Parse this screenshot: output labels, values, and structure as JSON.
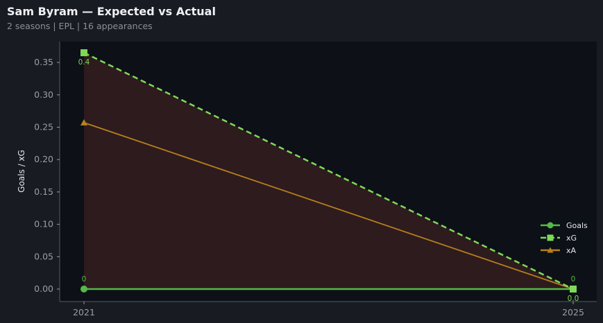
{
  "header": {
    "title": "Sam Byram — Expected vs Actual",
    "subtitle": "2 seasons | EPL | 16 appearances"
  },
  "chart_data": {
    "type": "line",
    "x": [
      2021,
      2025
    ],
    "xticks": [
      "2021",
      "2025"
    ],
    "ylabel": "Goals / xG",
    "ylim": [
      -0.02,
      0.38
    ],
    "yticks": [
      "0.00",
      "0.05",
      "0.10",
      "0.15",
      "0.20",
      "0.25",
      "0.30",
      "0.35"
    ],
    "series": [
      {
        "name": "Goals",
        "values": [
          0,
          0
        ],
        "color": "#55b947",
        "marker": "circle",
        "style": "solid",
        "labels": [
          "0",
          "0"
        ]
      },
      {
        "name": "xG",
        "values": [
          0.365,
          0
        ],
        "color": "#7ed957",
        "marker": "square",
        "style": "dashed",
        "labels": [
          "0.4",
          "0.0"
        ]
      },
      {
        "name": "xA",
        "values": [
          0.257,
          0
        ],
        "color": "#b7801c",
        "marker": "triangle",
        "style": "solid"
      }
    ],
    "fill_between": {
      "from": "Goals",
      "to": "xG",
      "color": "#2f1c1f"
    },
    "legend": "bottom-right",
    "grid": false
  }
}
